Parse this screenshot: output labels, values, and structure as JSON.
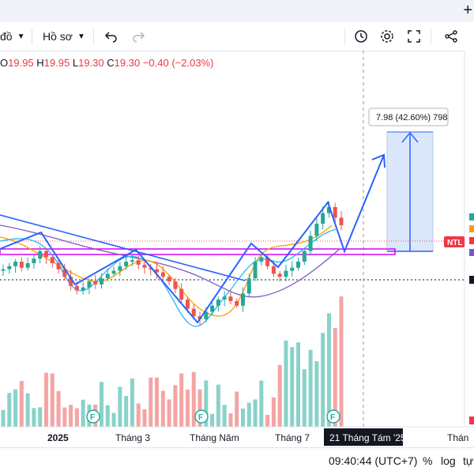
{
  "toolbar": {
    "partial_label": "đồ",
    "template_label": "Hồ sơ"
  },
  "ohlc": {
    "o_label": "O",
    "o_value": "19.95",
    "h_label": "H",
    "h_value": "19.95",
    "l_label": "L",
    "l_value": "19.30",
    "c_label": "C",
    "c_value": "19.30",
    "change": "−0.40 (−2.03%)"
  },
  "annotation": {
    "target_label": "7.98 (42.60%) 798"
  },
  "symbol_tag": "NTL",
  "time_axis": {
    "labels": [
      "2025",
      "Tháng 3",
      "Tháng Năm",
      "Tháng 7",
      "Thán"
    ],
    "crosshair_label": "21 Tháng Tám '25"
  },
  "bottombar": {
    "clock": "09:40:44 (UTC+7)",
    "percent": "%",
    "log": "log",
    "auto": "tự"
  },
  "colors": {
    "up": "#26a69a",
    "down": "#ef5350",
    "volume_up": "#89d2c9",
    "volume_down": "#f5a4a4",
    "pattern_line": "#2962ff",
    "zone_fill": "#dce7fb",
    "support_band": "#d500f9",
    "ma_fast": "#29b6f6",
    "ma_mid": "#ffa000",
    "ma_slow": "#7e57c2"
  },
  "icons": [
    "chevron-down-icon",
    "undo-icon",
    "redo-icon",
    "alert-clock-icon",
    "gear-icon",
    "fullscreen-icon",
    "share-icon",
    "plus-icon"
  ],
  "chart_data": {
    "type": "candlestick",
    "series": [
      {
        "name": "price",
        "values": [
          16.4,
          16.6,
          16.9,
          16.5,
          16.8,
          17.1,
          17.6,
          17.2,
          16.8,
          16.4,
          15.9,
          15.3,
          15.0,
          15.2,
          15.6,
          15.4,
          15.8,
          16.1,
          16.3,
          16.6,
          16.9,
          17.0,
          16.7,
          16.5,
          16.4,
          16.2,
          15.9,
          15.6,
          15.1,
          14.4,
          13.8,
          13.3,
          13.1,
          13.6,
          14.0,
          14.4,
          14.6,
          14.3,
          14.0,
          14.8,
          15.8,
          16.9,
          17.2,
          16.6,
          16.1,
          15.9,
          16.3,
          16.5,
          16.9,
          17.6,
          18.6,
          19.4,
          20.1,
          20.5,
          19.8,
          19.3
        ]
      }
    ]
  }
}
